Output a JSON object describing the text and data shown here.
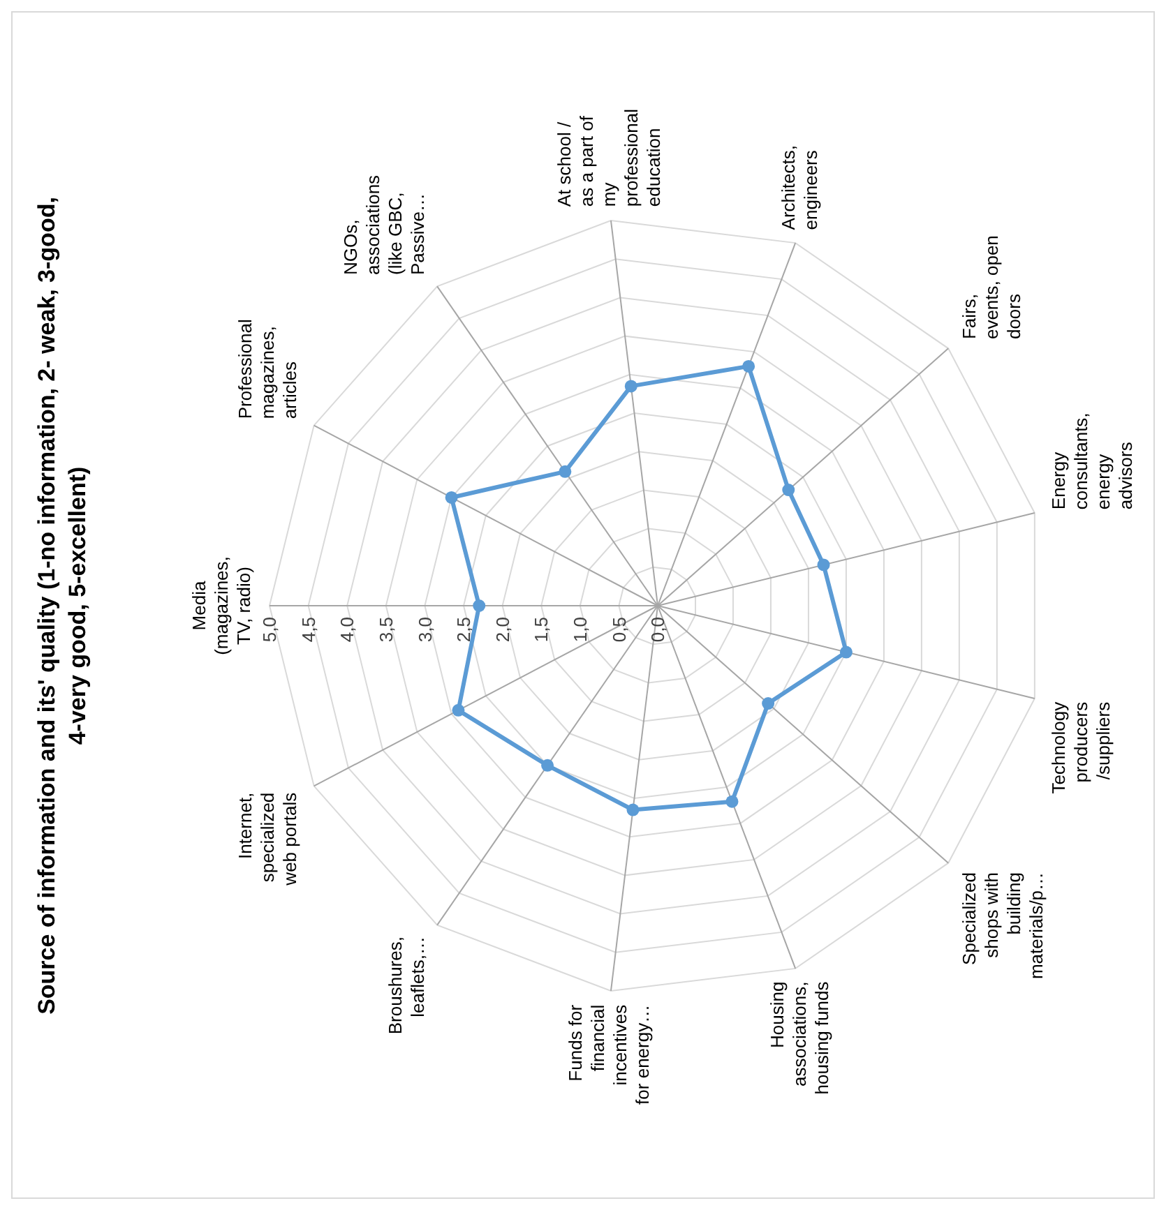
{
  "chart_data": {
    "type": "radar",
    "title": "Source of information and its' quality (1-no information, 2- weak, 3-good, 4-very good, 5-excellent)",
    "categories": [
      "Media (magazines, TV, radio)",
      "Professional magazines, articles",
      "NGOs, associations (like GBC, Passive…",
      "At school / as a part of my professional education",
      "Architects, engineers",
      "Fairs, events, open doors",
      "Energy consultants, energy advisors",
      "Technology producers /suppliers",
      "Specialized shops with building materials/p…",
      "Housing associations, housing funds",
      "Funds for financial incentives for energy…",
      "Broushures, leaflets,…",
      "Internet, specialized web portals"
    ],
    "series": [
      {
        "color": "#5b9bd5",
        "values": [
          2.3,
          3.0,
          2.1,
          2.85,
          3.3,
          2.25,
          2.2,
          2.5,
          1.9,
          2.7,
          2.65,
          2.5,
          2.9
        ]
      }
    ],
    "ylim": [
      0,
      5
    ],
    "yticks": [
      {
        "value": 0,
        "label": "0,0"
      },
      {
        "value": 0.5,
        "label": "0,5"
      },
      {
        "value": 1,
        "label": "1,0"
      },
      {
        "value": 1.5,
        "label": "1,5"
      },
      {
        "value": 2,
        "label": "2,0"
      },
      {
        "value": 2.5,
        "label": "2,5"
      },
      {
        "value": 3,
        "label": "3,0"
      },
      {
        "value": 3.5,
        "label": "3,5"
      },
      {
        "value": 4,
        "label": "4,0"
      },
      {
        "value": 4.5,
        "label": "4,5"
      },
      {
        "value": 5,
        "label": "5,0"
      }
    ],
    "grid": true,
    "marker": "circle",
    "line_style": "solid"
  }
}
